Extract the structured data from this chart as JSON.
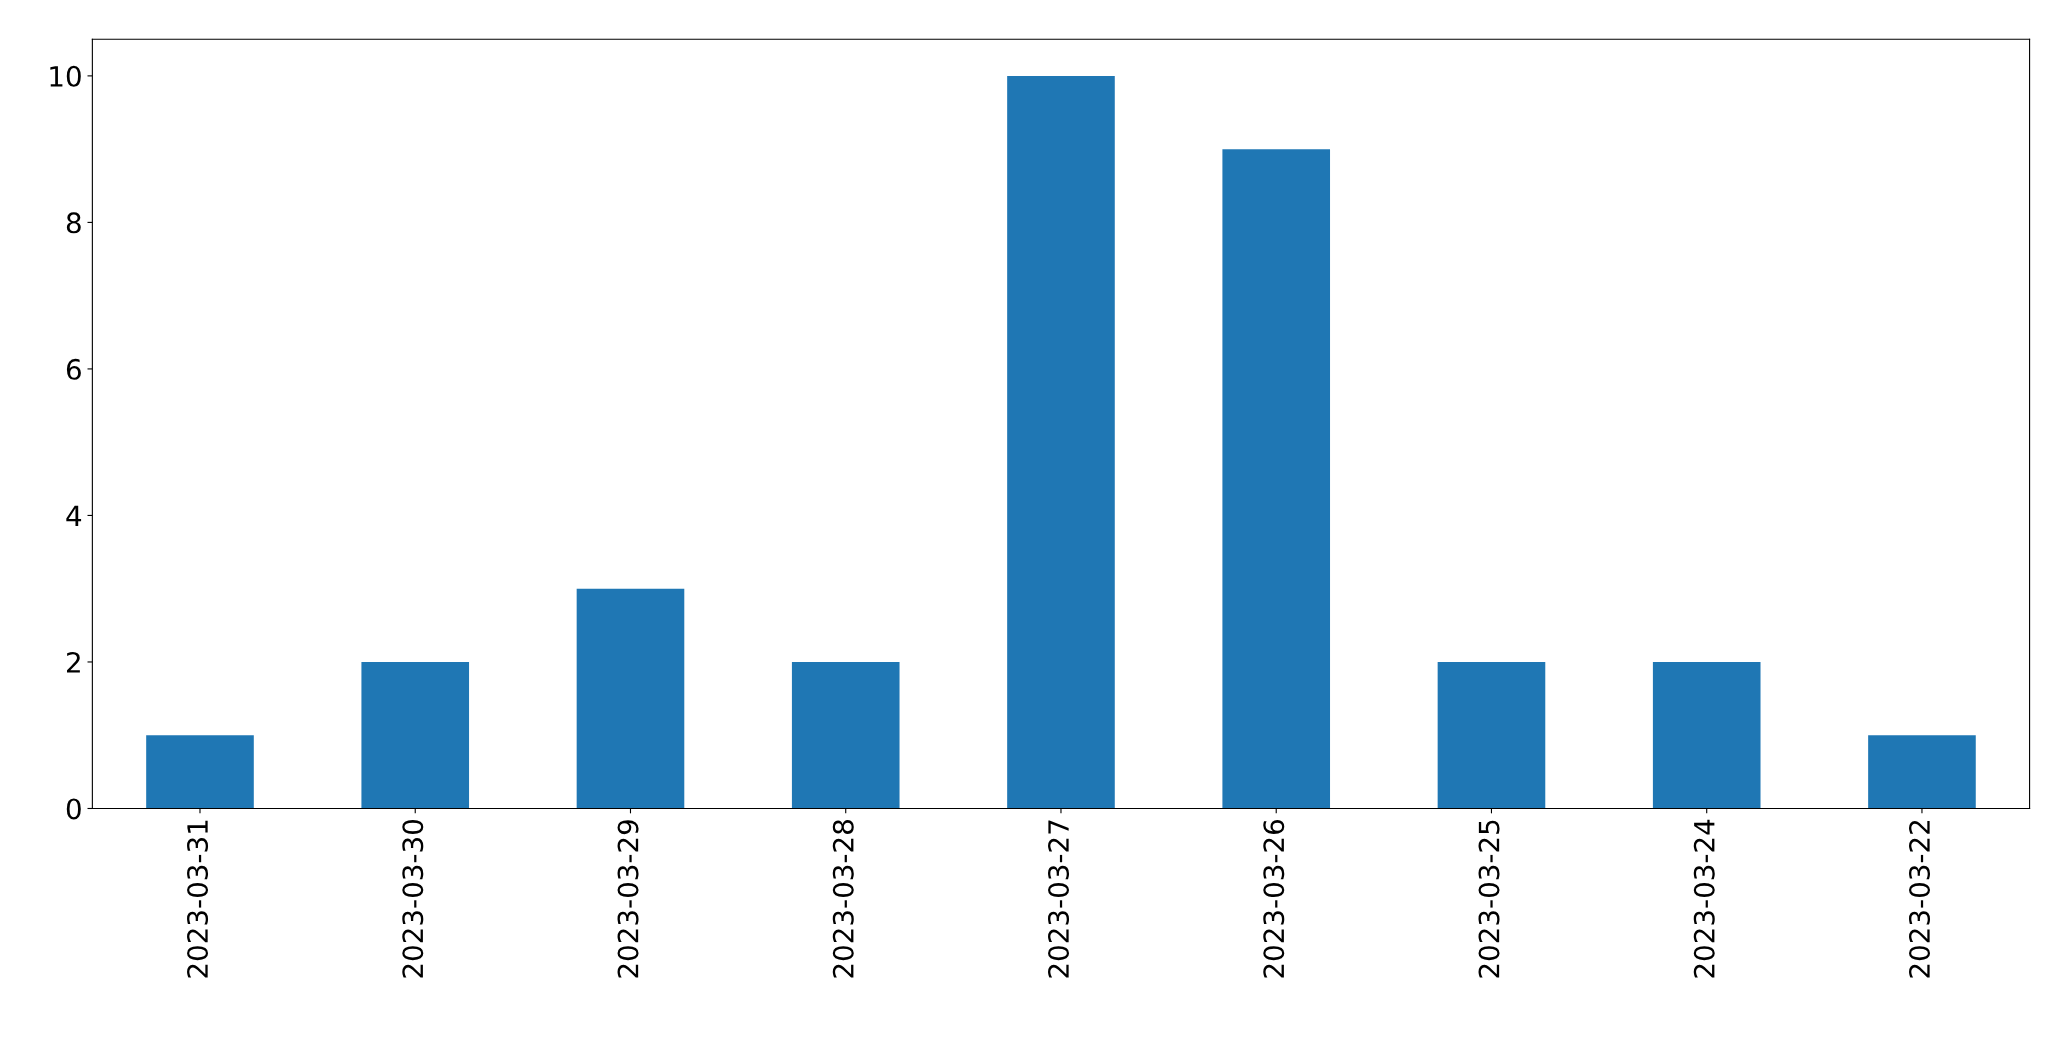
{
  "chart_data": {
    "type": "bar",
    "categories": [
      "2023-03-31",
      "2023-03-30",
      "2023-03-29",
      "2023-03-28",
      "2023-03-27",
      "2023-03-26",
      "2023-03-25",
      "2023-03-24",
      "2023-03-22"
    ],
    "values": [
      1,
      2,
      3,
      2,
      10,
      9,
      2,
      2,
      1
    ],
    "color": "#1f77b4",
    "ylim": [
      0,
      10.5
    ],
    "yticks": [
      0,
      2,
      4,
      6,
      8,
      10
    ],
    "grid": false,
    "legend": false
  }
}
